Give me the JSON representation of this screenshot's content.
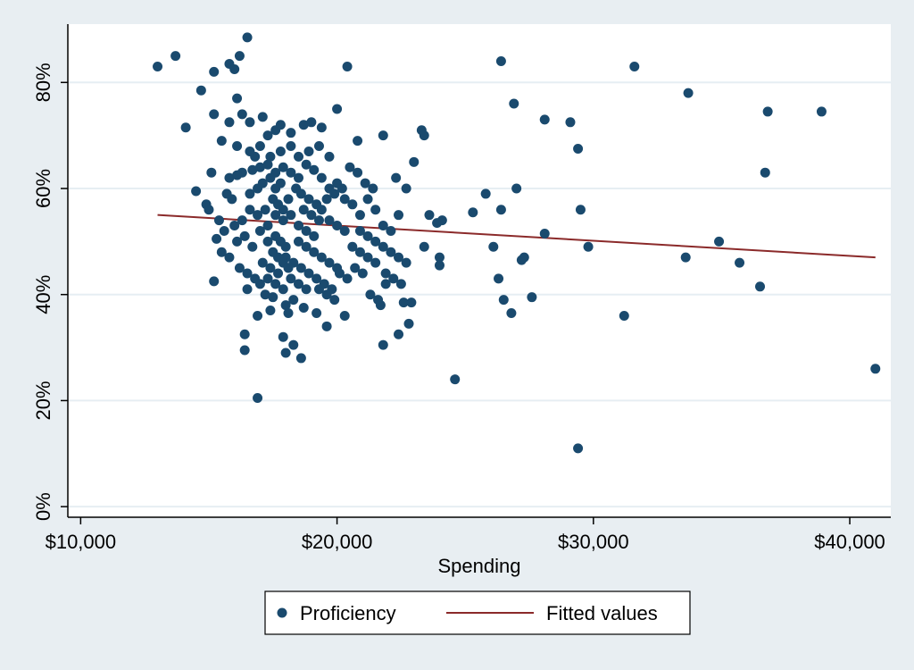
{
  "chart_data": {
    "type": "scatter",
    "xlabel": "Spending",
    "ylabel": "",
    "title": "",
    "xlim": [
      9500,
      41600
    ],
    "ylim": [
      -2,
      91
    ],
    "x_ticks": [
      10000,
      20000,
      30000,
      40000
    ],
    "x_tick_labels": [
      "$10,000",
      "$20,000",
      "$30,000",
      "$40,000"
    ],
    "y_ticks": [
      0,
      20,
      40,
      60,
      80
    ],
    "y_tick_labels": [
      "0%",
      "20%",
      "40%",
      "60%",
      "80%"
    ],
    "grid": "horizontal",
    "legend_position": "bottom",
    "colors": {
      "points": "#1a4a6e",
      "fit_line": "#8b2a2a",
      "plot_background": "#ffffff",
      "outer_background": "#e8eef2",
      "gridline": "#e6eef3"
    },
    "series": [
      {
        "name": "Proficiency",
        "kind": "points",
        "points": [
          [
            13000,
            83
          ],
          [
            13700,
            85
          ],
          [
            14100,
            71.5
          ],
          [
            14700,
            78.5
          ],
          [
            15200,
            82
          ],
          [
            15800,
            83.5
          ],
          [
            16000,
            82.5
          ],
          [
            16200,
            85
          ],
          [
            16500,
            88.5
          ],
          [
            15200,
            74
          ],
          [
            15500,
            69
          ],
          [
            15800,
            72.5
          ],
          [
            16100,
            77
          ],
          [
            16300,
            74
          ],
          [
            16600,
            72.5
          ],
          [
            17100,
            73.5
          ],
          [
            16100,
            68
          ],
          [
            16800,
            66
          ],
          [
            17300,
            70
          ],
          [
            17600,
            71
          ],
          [
            17800,
            72
          ],
          [
            18200,
            70.5
          ],
          [
            18700,
            72
          ],
          [
            19000,
            72.5
          ],
          [
            19400,
            71.5
          ],
          [
            20000,
            75
          ],
          [
            20400,
            83
          ],
          [
            20800,
            69
          ],
          [
            21800,
            70
          ],
          [
            23300,
            71
          ],
          [
            23400,
            70
          ],
          [
            23000,
            65
          ],
          [
            22300,
            62
          ],
          [
            22700,
            60
          ],
          [
            23600,
            55
          ],
          [
            23900,
            53.5
          ],
          [
            24100,
            54
          ],
          [
            23400,
            49
          ],
          [
            14500,
            59.5
          ],
          [
            14900,
            57
          ],
          [
            15100,
            63
          ],
          [
            15000,
            56
          ],
          [
            15400,
            54
          ],
          [
            15600,
            52
          ],
          [
            15300,
            50.5
          ],
          [
            15700,
            59
          ],
          [
            15900,
            58
          ],
          [
            15800,
            62
          ],
          [
            16300,
            63
          ],
          [
            16100,
            62.5
          ],
          [
            16700,
            63.5
          ],
          [
            17000,
            64
          ],
          [
            17300,
            64.5
          ],
          [
            17600,
            63
          ],
          [
            17900,
            64
          ],
          [
            18200,
            63
          ],
          [
            18500,
            62
          ],
          [
            18800,
            64.5
          ],
          [
            19100,
            63.5
          ],
          [
            19400,
            62
          ],
          [
            19700,
            60
          ],
          [
            20000,
            61
          ],
          [
            20300,
            58
          ],
          [
            20600,
            57
          ],
          [
            20900,
            55
          ],
          [
            21200,
            58
          ],
          [
            21500,
            56
          ],
          [
            21800,
            53
          ],
          [
            22100,
            52
          ],
          [
            22400,
            55
          ],
          [
            15500,
            48
          ],
          [
            15800,
            47
          ],
          [
            16100,
            50
          ],
          [
            16400,
            51
          ],
          [
            16700,
            49
          ],
          [
            17000,
            52
          ],
          [
            17300,
            53
          ],
          [
            17600,
            51
          ],
          [
            17900,
            54
          ],
          [
            18200,
            55
          ],
          [
            18500,
            53
          ],
          [
            18800,
            52
          ],
          [
            19100,
            51
          ],
          [
            19400,
            56
          ],
          [
            19700,
            54
          ],
          [
            20000,
            53
          ],
          [
            20300,
            52
          ],
          [
            20600,
            49
          ],
          [
            20900,
            48
          ],
          [
            21200,
            47
          ],
          [
            21500,
            46
          ],
          [
            16200,
            45
          ],
          [
            16500,
            44
          ],
          [
            16800,
            43
          ],
          [
            17100,
            46
          ],
          [
            17400,
            45
          ],
          [
            17700,
            44
          ],
          [
            18000,
            47
          ],
          [
            18300,
            46
          ],
          [
            18600,
            45
          ],
          [
            18900,
            44
          ],
          [
            19200,
            43
          ],
          [
            19500,
            42
          ],
          [
            19800,
            41
          ],
          [
            20100,
            44
          ],
          [
            20400,
            43
          ],
          [
            20700,
            45
          ],
          [
            21000,
            44
          ],
          [
            21300,
            40
          ],
          [
            21600,
            39
          ],
          [
            21900,
            42
          ],
          [
            15200,
            42.5
          ],
          [
            16500,
            41
          ],
          [
            17200,
            40
          ],
          [
            17500,
            39.5
          ],
          [
            18000,
            38
          ],
          [
            18300,
            39
          ],
          [
            18700,
            37.5
          ],
          [
            19200,
            36.5
          ],
          [
            19600,
            34
          ],
          [
            20300,
            36
          ],
          [
            16900,
            36
          ],
          [
            17400,
            37
          ],
          [
            18100,
            36.5
          ],
          [
            16400,
            32.5
          ],
          [
            16400,
            29.5
          ],
          [
            17900,
            32
          ],
          [
            18300,
            30.5
          ],
          [
            18600,
            28
          ],
          [
            18000,
            29
          ],
          [
            16900,
            20.5
          ],
          [
            21800,
            30.5
          ],
          [
            22400,
            32.5
          ],
          [
            22800,
            34.5
          ],
          [
            22600,
            38.5
          ],
          [
            22900,
            38.5
          ],
          [
            24000,
            47
          ],
          [
            24000,
            45.5
          ],
          [
            17500,
            58
          ],
          [
            17700,
            57
          ],
          [
            17900,
            56
          ],
          [
            18100,
            58
          ],
          [
            17600,
            55
          ],
          [
            17800,
            50
          ],
          [
            18000,
            49
          ],
          [
            17700,
            47
          ],
          [
            17900,
            46
          ],
          [
            18100,
            45
          ],
          [
            17500,
            48
          ],
          [
            17300,
            50
          ],
          [
            17600,
            60
          ],
          [
            17800,
            61
          ],
          [
            17400,
            62
          ],
          [
            18400,
            60
          ],
          [
            18600,
            59
          ],
          [
            18900,
            58
          ],
          [
            19200,
            57
          ],
          [
            18700,
            56
          ],
          [
            19000,
            55
          ],
          [
            19300,
            54
          ],
          [
            18500,
            50
          ],
          [
            18800,
            49
          ],
          [
            19100,
            48
          ],
          [
            19400,
            47
          ],
          [
            19700,
            46
          ],
          [
            20000,
            45
          ],
          [
            17200,
            56
          ],
          [
            16900,
            55
          ],
          [
            16600,
            56
          ],
          [
            16300,
            54
          ],
          [
            16000,
            53
          ],
          [
            16600,
            59
          ],
          [
            16900,
            60
          ],
          [
            17100,
            61
          ],
          [
            19600,
            58
          ],
          [
            19900,
            59
          ],
          [
            20200,
            60
          ],
          [
            20500,
            64
          ],
          [
            20800,
            63
          ],
          [
            21100,
            61
          ],
          [
            21400,
            60
          ],
          [
            20900,
            52
          ],
          [
            21200,
            51
          ],
          [
            21500,
            50
          ],
          [
            21800,
            49
          ],
          [
            22100,
            48
          ],
          [
            22400,
            47
          ],
          [
            22700,
            46
          ],
          [
            21900,
            44
          ],
          [
            22200,
            43
          ],
          [
            22500,
            42
          ],
          [
            21700,
            38
          ],
          [
            18500,
            66
          ],
          [
            18900,
            67
          ],
          [
            19300,
            68
          ],
          [
            19700,
            66
          ],
          [
            16600,
            67
          ],
          [
            17000,
            68
          ],
          [
            17400,
            66
          ],
          [
            17800,
            67
          ],
          [
            18200,
            68
          ],
          [
            19300,
            41
          ],
          [
            19600,
            40
          ],
          [
            19900,
            39
          ],
          [
            17000,
            42
          ],
          [
            17300,
            43
          ],
          [
            17600,
            42
          ],
          [
            17900,
            41
          ],
          [
            18200,
            43
          ],
          [
            18500,
            42
          ],
          [
            18800,
            41
          ],
          [
            25300,
            55.5
          ],
          [
            25800,
            59
          ],
          [
            26400,
            56
          ],
          [
            27000,
            60
          ],
          [
            28100,
            51.5
          ],
          [
            26100,
            49
          ],
          [
            26300,
            43
          ],
          [
            26500,
            39
          ],
          [
            26800,
            36.5
          ],
          [
            27200,
            46.5
          ],
          [
            27300,
            47
          ],
          [
            27600,
            39.5
          ],
          [
            28100,
            73
          ],
          [
            29100,
            72.5
          ],
          [
            29400,
            67.5
          ],
          [
            29500,
            56
          ],
          [
            29800,
            49
          ],
          [
            26400,
            84
          ],
          [
            26900,
            76
          ],
          [
            24600,
            24
          ],
          [
            29400,
            11
          ],
          [
            31200,
            36
          ],
          [
            31600,
            83
          ],
          [
            33600,
            47
          ],
          [
            33700,
            78
          ],
          [
            34900,
            50
          ],
          [
            35700,
            46
          ],
          [
            36500,
            41.5
          ],
          [
            36700,
            63
          ],
          [
            36800,
            74.5
          ],
          [
            38900,
            74.5
          ],
          [
            41000,
            26
          ]
        ]
      },
      {
        "name": "Fitted values",
        "kind": "line",
        "points": [
          [
            13000,
            55
          ],
          [
            41000,
            47
          ]
        ]
      }
    ]
  }
}
